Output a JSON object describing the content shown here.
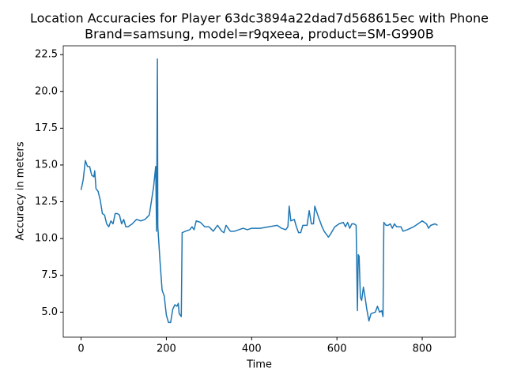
{
  "chart_data": {
    "type": "line",
    "title": [
      "Location Accuracies for Player 63dc3894a22dad7d568615ec with Phone",
      "Brand=samsung, model=r9qxeea, product=SM-G990B"
    ],
    "x_label": "Time",
    "y_label": "Accuracy in meters",
    "x": [
      0,
      5,
      10,
      15,
      20,
      25,
      30,
      32,
      35,
      40,
      45,
      50,
      55,
      60,
      65,
      70,
      75,
      80,
      85,
      90,
      95,
      100,
      105,
      110,
      120,
      130,
      140,
      150,
      160,
      170,
      175,
      177,
      179,
      180,
      185,
      190,
      195,
      200,
      205,
      210,
      215,
      220,
      225,
      228,
      230,
      235,
      237,
      245,
      255,
      260,
      265,
      270,
      280,
      290,
      300,
      310,
      320,
      330,
      335,
      340,
      350,
      360,
      370,
      380,
      390,
      400,
      420,
      440,
      460,
      470,
      480,
      485,
      488,
      492,
      500,
      505,
      510,
      515,
      520,
      530,
      535,
      540,
      545,
      548,
      555,
      565,
      570,
      580,
      585,
      595,
      605,
      615,
      620,
      625,
      630,
      635,
      640,
      645,
      648,
      650,
      652,
      655,
      658,
      662,
      665,
      670,
      675,
      680,
      690,
      695,
      700,
      705,
      708,
      710,
      715,
      720,
      725,
      730,
      735,
      740,
      750,
      755,
      765,
      780,
      800,
      810,
      815,
      820,
      830,
      836
    ],
    "values": [
      13.3,
      14.0,
      15.3,
      14.9,
      14.9,
      14.3,
      14.2,
      14.6,
      13.4,
      13.2,
      12.6,
      11.7,
      11.6,
      11.0,
      10.8,
      11.2,
      11.0,
      11.7,
      11.7,
      11.6,
      11.0,
      11.3,
      10.8,
      10.8,
      11.0,
      11.3,
      11.2,
      11.3,
      11.6,
      13.5,
      14.9,
      10.5,
      22.2,
      10.8,
      8.5,
      6.5,
      6.1,
      4.8,
      4.3,
      4.3,
      5.2,
      5.5,
      5.4,
      5.6,
      4.9,
      4.7,
      10.4,
      10.5,
      10.6,
      10.8,
      10.6,
      11.2,
      11.1,
      10.8,
      10.8,
      10.5,
      10.9,
      10.5,
      10.4,
      10.9,
      10.5,
      10.5,
      10.6,
      10.7,
      10.6,
      10.7,
      10.7,
      10.8,
      10.9,
      10.7,
      10.6,
      10.8,
      12.2,
      11.2,
      11.3,
      10.8,
      10.4,
      10.4,
      10.9,
      10.9,
      11.9,
      11.0,
      11.0,
      12.2,
      11.6,
      10.8,
      10.5,
      10.1,
      10.3,
      10.8,
      11.0,
      11.1,
      10.8,
      11.1,
      10.7,
      11.0,
      11.0,
      10.9,
      5.1,
      8.9,
      8.8,
      6.0,
      5.8,
      6.7,
      6.2,
      5.2,
      4.4,
      4.9,
      5.0,
      5.4,
      5.0,
      5.1,
      4.7,
      11.1,
      10.9,
      10.9,
      11.0,
      10.7,
      11.0,
      10.8,
      10.8,
      10.5,
      10.6,
      10.8,
      11.2,
      11.0,
      10.7,
      10.9,
      11.0,
      10.9
    ],
    "color": "#1f77b4",
    "xlim": [
      -41.8,
      877.8
    ],
    "xticks": [
      0,
      200,
      400,
      600,
      800
    ],
    "ylim": [
      3.3,
      23.1
    ],
    "yticks": [
      {
        "value": 5,
        "label": "5.0"
      },
      7.5,
      {
        "value": 10,
        "label": "10.0"
      },
      12.5,
      {
        "value": 15,
        "label": "15.0"
      },
      17.5,
      {
        "value": 20,
        "label": "20.0"
      },
      22.5
    ]
  }
}
